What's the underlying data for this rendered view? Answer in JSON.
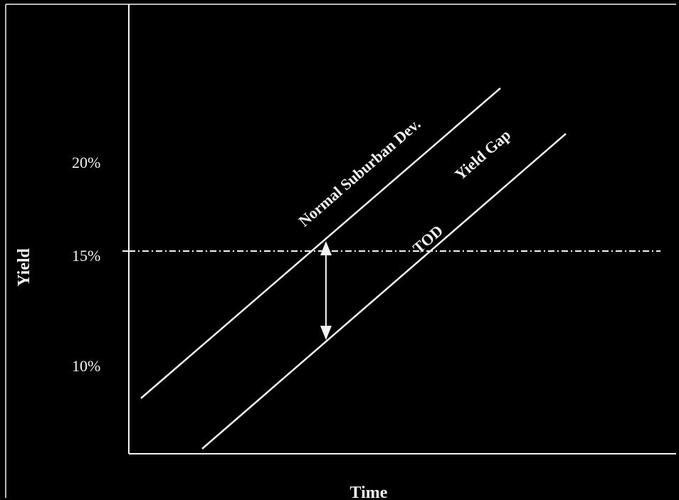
{
  "colors": {
    "background": "#000000",
    "ink": "#f2f2f2"
  },
  "axes": {
    "x_title": "Time",
    "y_title": "Yield",
    "y_ticks": [
      "20%",
      "15%",
      "10%"
    ]
  },
  "lines": {
    "normal_label": "Normal Suburban Dev.",
    "tod_label": "TOD",
    "gap_label": "Yield Gap"
  }
}
